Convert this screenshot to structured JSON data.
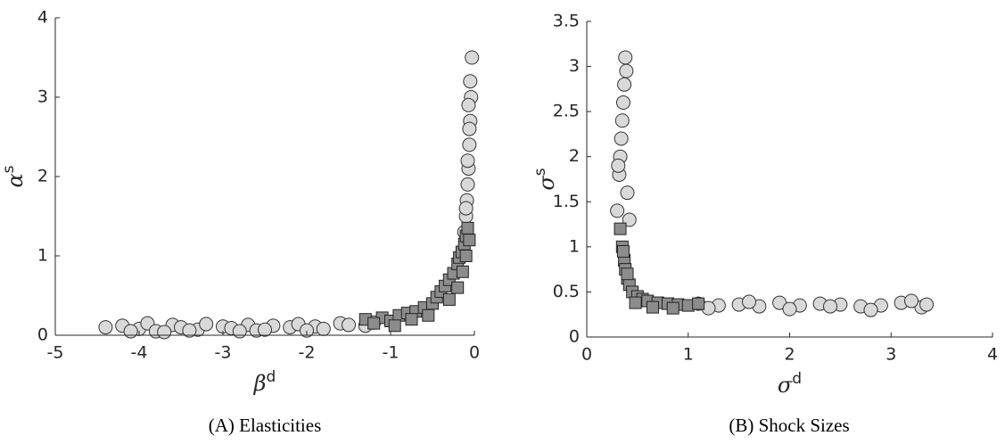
{
  "chart_data": [
    {
      "type": "scatter",
      "caption": "(A) Elasticities",
      "xlabel": [
        "β",
        "d"
      ],
      "ylabel": [
        "α",
        "s"
      ],
      "xlim": [
        -5,
        0
      ],
      "ylim": [
        0,
        4
      ],
      "xticks": [
        -5,
        -4,
        -3,
        -2,
        -1,
        0
      ],
      "yticks": [
        0,
        1,
        2,
        3,
        4
      ],
      "series": [
        {
          "marker": "circle",
          "color": "#d9d9d9",
          "x": [
            -4.4,
            -4.2,
            -4.0,
            -3.9,
            -3.8,
            -3.6,
            -3.5,
            -3.3,
            -3.2,
            -3.0,
            -2.9,
            -2.7,
            -2.6,
            -2.4,
            -2.2,
            -2.1,
            -1.9,
            -1.8,
            -1.6,
            -1.5,
            -1.3,
            -1.2,
            -4.1,
            -3.7,
            -3.4,
            -2.8,
            -2.5,
            -2.0,
            -0.12,
            -0.1,
            -0.09,
            -0.08,
            -0.07,
            -0.06,
            -0.05,
            -0.04,
            -0.08,
            -0.06,
            -0.05,
            -0.03,
            -0.07,
            -0.1
          ],
          "values": [
            0.1,
            0.12,
            0.08,
            0.15,
            0.05,
            0.13,
            0.1,
            0.07,
            0.14,
            0.11,
            0.09,
            0.13,
            0.06,
            0.12,
            0.1,
            0.14,
            0.11,
            0.08,
            0.15,
            0.13,
            0.12,
            0.16,
            0.05,
            0.04,
            0.06,
            0.05,
            0.07,
            0.06,
            1.3,
            1.5,
            1.7,
            1.9,
            2.1,
            2.4,
            2.7,
            3.0,
            2.2,
            2.6,
            3.2,
            3.5,
            2.9,
            1.6
          ]
        },
        {
          "marker": "square",
          "color": "#8c8c8c",
          "x": [
            -1.3,
            -1.1,
            -1.0,
            -0.9,
            -0.8,
            -0.7,
            -0.6,
            -0.5,
            -0.45,
            -0.4,
            -0.35,
            -0.3,
            -0.25,
            -0.2,
            -0.18,
            -0.15,
            -0.12,
            -0.1,
            -0.08,
            -0.06,
            -1.2,
            -0.95,
            -0.75,
            -0.55,
            -0.3,
            -0.2,
            -0.14,
            -0.1
          ],
          "values": [
            0.2,
            0.22,
            0.18,
            0.25,
            0.28,
            0.3,
            0.35,
            0.4,
            0.48,
            0.55,
            0.62,
            0.7,
            0.78,
            0.9,
            0.98,
            1.05,
            1.15,
            1.25,
            1.35,
            1.2,
            0.15,
            0.12,
            0.2,
            0.25,
            0.45,
            0.6,
            0.8,
            1.0
          ]
        }
      ]
    },
    {
      "type": "scatter",
      "caption": "(B) Shock Sizes",
      "xlabel": [
        "σ",
        "d"
      ],
      "ylabel": [
        "σ",
        "s"
      ],
      "xlim": [
        0,
        4
      ],
      "ylim": [
        0,
        3.5
      ],
      "xticks": [
        0,
        1,
        2,
        3,
        4
      ],
      "yticks": [
        0,
        0.5,
        1,
        1.5,
        2,
        2.5,
        3,
        3.5
      ],
      "series": [
        {
          "marker": "circle",
          "color": "#d9d9d9",
          "x": [
            0.3,
            0.32,
            0.34,
            0.36,
            0.38,
            0.4,
            0.33,
            0.35,
            0.37,
            0.42,
            0.31,
            0.39,
            1.1,
            1.3,
            1.5,
            1.7,
            1.9,
            2.1,
            2.3,
            2.5,
            2.7,
            2.9,
            3.1,
            3.3,
            3.35,
            1.2,
            1.6,
            2.0,
            2.4,
            2.8,
            3.2
          ],
          "values": [
            1.4,
            1.8,
            2.2,
            2.6,
            3.1,
            1.6,
            2.0,
            2.4,
            2.8,
            1.3,
            1.9,
            2.95,
            0.37,
            0.35,
            0.36,
            0.34,
            0.38,
            0.35,
            0.37,
            0.36,
            0.34,
            0.35,
            0.38,
            0.33,
            0.36,
            0.32,
            0.39,
            0.31,
            0.34,
            0.3,
            0.4
          ]
        },
        {
          "marker": "square",
          "color": "#8c8c8c",
          "x": [
            0.33,
            0.35,
            0.37,
            0.38,
            0.4,
            0.42,
            0.45,
            0.5,
            0.55,
            0.6,
            0.7,
            0.8,
            0.9,
            1.0,
            1.1,
            0.36,
            0.4,
            0.48,
            0.65,
            0.85
          ],
          "values": [
            1.2,
            1.0,
            0.85,
            0.75,
            0.65,
            0.58,
            0.5,
            0.45,
            0.42,
            0.4,
            0.38,
            0.37,
            0.36,
            0.35,
            0.37,
            0.95,
            0.7,
            0.38,
            0.33,
            0.32
          ]
        }
      ]
    }
  ]
}
